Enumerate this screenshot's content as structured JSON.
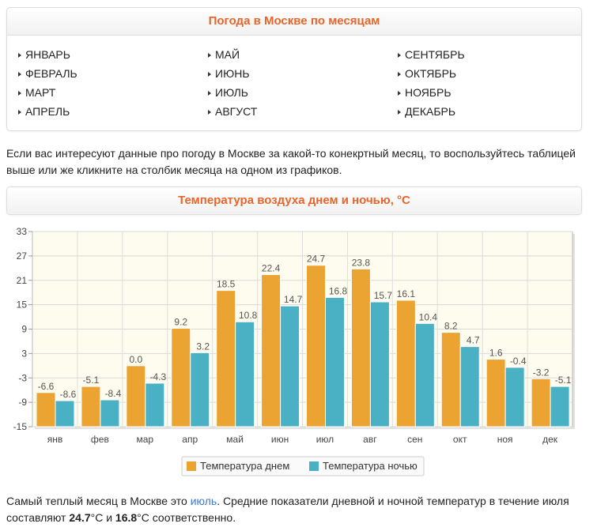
{
  "months_panel": {
    "title": "Погода в Москве по месяцам",
    "months": [
      "ЯНВАРЬ",
      "МАЙ",
      "СЕНТЯБРЬ",
      "ФЕВРАЛЬ",
      "ИЮНЬ",
      "ОКТЯБРЬ",
      "МАРТ",
      "ИЮЛЬ",
      "НОЯБРЬ",
      "АПРЕЛЬ",
      "АВГУСТ",
      "ДЕКАБРЬ"
    ]
  },
  "intro_text": "Если вас интересуют данные про погоду в Москве за какой-то конекртный месяц, то воспользуйтесь таблицей выше или же кликните на столбик месяца на одном из графиков.",
  "chart_panel": {
    "title": "Температура воздуха днем и ночью, °C"
  },
  "colors": {
    "day": "#eba332",
    "night": "#4ab1c4",
    "accent": "#e8652a",
    "plot_bg": "#fdfcee"
  },
  "chart_data": {
    "type": "bar",
    "title": "Температура воздуха днем и ночью, °C",
    "categories": [
      "янв",
      "фев",
      "мар",
      "апр",
      "май",
      "июн",
      "июл",
      "авг",
      "сен",
      "окт",
      "ноя",
      "дек"
    ],
    "series": [
      {
        "name": "Температура днем",
        "values": [
          -6.6,
          -5.1,
          0.0,
          9.2,
          18.5,
          22.4,
          24.7,
          23.8,
          16.1,
          8.2,
          1.6,
          -3.2
        ]
      },
      {
        "name": "Температура ночью",
        "values": [
          -8.6,
          -8.4,
          -4.3,
          3.2,
          10.8,
          14.7,
          16.8,
          15.7,
          10.4,
          4.7,
          -0.4,
          -5.1
        ]
      }
    ],
    "value_labels": [
      [
        "-6.6",
        "-5.1",
        "0.0",
        "9.2",
        "18.5",
        "22.4",
        "24.7",
        "23.8",
        "16.1",
        "8.2",
        "1.6",
        "-3.2"
      ],
      [
        "-8.6",
        "-8.4",
        "-4.3",
        "3.2",
        "10.8",
        "14.7",
        "16.8",
        "15.7",
        "10.4",
        "4.7",
        "-0.4",
        "-5.1"
      ]
    ],
    "yticks": [
      -15,
      -9,
      -3,
      3,
      9,
      15,
      21,
      27,
      33
    ],
    "ylim": [
      -15,
      33
    ],
    "xlabel": "",
    "ylabel": "",
    "grid": true,
    "legend_position": "bottom-center"
  },
  "summary": {
    "part1": "Самый теплый месяц в Москве это ",
    "link": "июль",
    "part2": ". Средние показатели дневной и ночной температур в течение июля составляют ",
    "day_value": "24.7",
    "unit1": "°C и ",
    "night_value": "16.8",
    "unit2": "°C соответственно."
  }
}
